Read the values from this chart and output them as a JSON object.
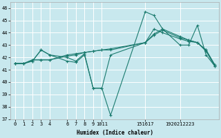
{
  "xlabel": "Humidex (Indice chaleur)",
  "background_color": "#c8e8ee",
  "grid_color": "#ffffff",
  "line_color": "#1a7a6e",
  "xlim": [
    -0.5,
    23.5
  ],
  "ylim": [
    37.0,
    46.5
  ],
  "yticks": [
    37,
    38,
    39,
    40,
    41,
    42,
    43,
    44,
    45,
    46
  ],
  "xtick_positions": [
    0,
    1,
    2,
    3,
    4,
    6,
    7,
    8,
    9,
    10,
    15,
    19
  ],
  "xtick_labels": [
    "0",
    "1",
    "2",
    "3",
    "4",
    "6",
    "7",
    "8",
    "9",
    "1011",
    "151617",
    "1920212223"
  ],
  "lines": [
    {
      "x": [
        0,
        1,
        2,
        3,
        4,
        6,
        7,
        8,
        9,
        10,
        11,
        15,
        16,
        17,
        19,
        20,
        21,
        22,
        23
      ],
      "y": [
        41.5,
        41.5,
        41.7,
        42.6,
        42.2,
        41.7,
        41.6,
        42.2,
        39.5,
        39.5,
        37.3,
        45.7,
        45.4,
        44.3,
        43.0,
        43.0,
        44.6,
        42.2,
        41.3
      ]
    },
    {
      "x": [
        0,
        1,
        2,
        3,
        4,
        6,
        7,
        8,
        9,
        10,
        11,
        15,
        16,
        17,
        19,
        20,
        21,
        22,
        23
      ],
      "y": [
        41.5,
        41.5,
        41.7,
        42.6,
        42.2,
        42.0,
        41.7,
        42.3,
        39.5,
        39.5,
        42.2,
        43.2,
        44.3,
        44.0,
        43.5,
        43.3,
        43.2,
        42.5,
        41.3
      ]
    },
    {
      "x": [
        0,
        1,
        2,
        3,
        4,
        6,
        7,
        8,
        9,
        10,
        11,
        15,
        16,
        17,
        19,
        20,
        21,
        22,
        23
      ],
      "y": [
        41.5,
        41.5,
        41.8,
        41.8,
        41.8,
        42.1,
        42.2,
        42.4,
        42.5,
        42.6,
        42.6,
        43.2,
        43.8,
        44.2,
        43.6,
        43.4,
        43.2,
        42.6,
        41.4
      ]
    },
    {
      "x": [
        0,
        1,
        2,
        3,
        4,
        6,
        7,
        8,
        9,
        10,
        11,
        15,
        16,
        17,
        19,
        20,
        21,
        22,
        23
      ],
      "y": [
        41.5,
        41.5,
        41.8,
        41.8,
        41.8,
        42.2,
        42.3,
        42.4,
        42.5,
        42.6,
        42.7,
        43.2,
        43.9,
        44.3,
        43.7,
        43.4,
        43.2,
        42.6,
        41.4
      ]
    }
  ]
}
